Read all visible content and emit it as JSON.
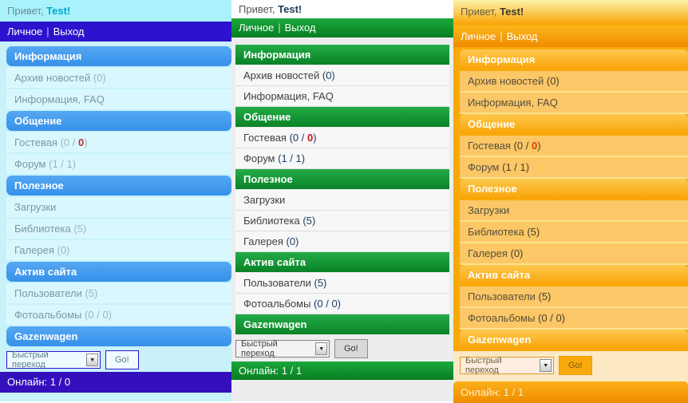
{
  "colors": {
    "blue_theme": {
      "accent": "#3f9bef",
      "nav": "#2d12ce",
      "item_bg": "#d9f8fd",
      "page_bg": "#c8f1fa",
      "red_count": "#c1303f"
    },
    "green_theme": {
      "accent": "#0f9a32",
      "nav": "#0d8f2c",
      "item_bg": "#f7f7f7",
      "page_bg": "#ededed",
      "red_count": "#cc1111"
    },
    "orange_theme": {
      "accent": "#f9a306",
      "nav": "#f59c0d",
      "item_bg": "#fcc766",
      "page_bg": "#f9a90a",
      "red_count": "#e03c00"
    }
  },
  "menu": {
    "sections": [
      {
        "title": "Информация",
        "items": [
          {
            "label": "Архив новостей",
            "count_parts": [
              {
                "text": "(0)",
                "style": "normal"
              }
            ]
          },
          {
            "label": "Информация, FAQ",
            "count_parts": []
          }
        ]
      },
      {
        "title": "Общение",
        "items": [
          {
            "label": "Гостевая",
            "count_parts": [
              {
                "text": "(0 / ",
                "style": "normal"
              },
              {
                "text": "0",
                "style": "red"
              },
              {
                "text": ")",
                "style": "normal"
              }
            ]
          },
          {
            "label": "Форум",
            "count_parts": [
              {
                "text": "(1 / 1)",
                "style": "normal"
              }
            ]
          }
        ]
      },
      {
        "title": "Полезное",
        "items": [
          {
            "label": "Загрузки",
            "count_parts": []
          },
          {
            "label": "Библиотека",
            "count_parts": [
              {
                "text": "(5)",
                "style": "normal"
              }
            ]
          },
          {
            "label": "Галерея",
            "count_parts": [
              {
                "text": "(0)",
                "style": "normal"
              }
            ]
          }
        ]
      },
      {
        "title": "Актив сайта",
        "items": [
          {
            "label": "Пользователи",
            "count_parts": [
              {
                "text": "(5)",
                "style": "normal"
              }
            ]
          },
          {
            "label": "Фотоальбомы",
            "count_parts": [
              {
                "text": "(0 / 0)",
                "style": "normal"
              }
            ]
          }
        ]
      },
      {
        "title": "Gazenwagen",
        "items": []
      }
    ]
  },
  "panels": [
    {
      "theme": "blue",
      "greeting_prefix": "Привет,",
      "greeting_user": "Test!",
      "nav_personal": "Личное",
      "nav_separator": "|",
      "nav_logout": "Выход",
      "quick_select_label": "Быстрый переход",
      "quick_go_label": "Go!",
      "online_label": "Онлайн:",
      "online_value": "1 / 0"
    },
    {
      "theme": "green",
      "greeting_prefix": "Привет,",
      "greeting_user": "Test!",
      "nav_personal": "Личное",
      "nav_separator": "|",
      "nav_logout": "Выход",
      "quick_select_label": "Быстрый переход",
      "quick_go_label": "Go!",
      "online_label": "Онлайн:",
      "online_value": "1 / 1"
    },
    {
      "theme": "orange",
      "greeting_prefix": "Привет,",
      "greeting_user": "Test!",
      "nav_personal": "Личное",
      "nav_separator": "|",
      "nav_logout": "Выход",
      "quick_select_label": "Быстрый переход",
      "quick_go_label": "Go!",
      "online_label": "Онлайн:",
      "online_value": "1 / 1"
    }
  ]
}
